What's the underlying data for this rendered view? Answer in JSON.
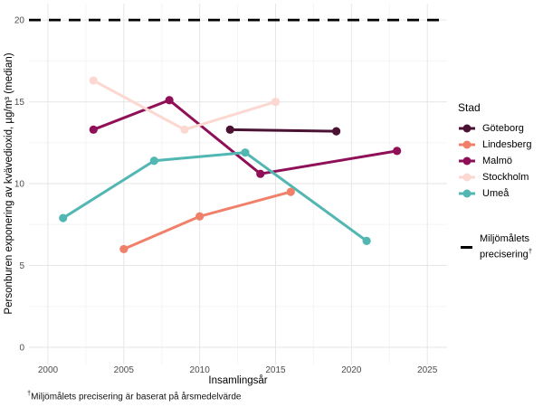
{
  "chart_data": {
    "type": "line",
    "title": "",
    "xlabel": "Insamlingsår",
    "ylabel": "Personburen exponering av kvävedioxid, µg/m³ (median)",
    "xlim": [
      1998.75,
      2026.3
    ],
    "ylim": [
      -1.05,
      21
    ],
    "x_ticks": [
      2000,
      2005,
      2010,
      2015,
      2020,
      2025
    ],
    "y_ticks": [
      0,
      5,
      10,
      15,
      20
    ],
    "x_minor_ticks": [
      2002.5,
      2007.5,
      2012.5,
      2017.5,
      2022.5
    ],
    "y_minor_ticks": [
      2.5,
      7.5,
      12.5,
      17.5
    ],
    "grid": "on",
    "legend_position": "right",
    "legend_title": "Stad",
    "series": [
      {
        "name": "Göteborg",
        "color": "#4b1234",
        "points": [
          [
            2012,
            13.3
          ],
          [
            2019,
            13.2
          ]
        ]
      },
      {
        "name": "Lindesberg",
        "color": "#f0806a",
        "points": [
          [
            2005,
            6.0
          ],
          [
            2010,
            8.0
          ],
          [
            2016,
            9.5
          ]
        ]
      },
      {
        "name": "Malmö",
        "color": "#8f1057",
        "points": [
          [
            2003,
            13.3
          ],
          [
            2008,
            15.1
          ],
          [
            2014,
            10.6
          ],
          [
            2023,
            12.0
          ]
        ]
      },
      {
        "name": "Stockholm",
        "color": "#fcd8d0",
        "points": [
          [
            2003,
            16.3
          ],
          [
            2009,
            13.3
          ],
          [
            2015,
            15.0
          ]
        ]
      },
      {
        "name": "Umeå",
        "color": "#52b7b3",
        "points": [
          [
            2001,
            7.9
          ],
          [
            2007,
            11.4
          ],
          [
            2013,
            11.9
          ],
          [
            2021,
            6.5
          ]
        ]
      }
    ],
    "reference_line": {
      "value": 20,
      "color": "#000000",
      "style": "dashed",
      "legend_label_line1": "Miljömålets",
      "legend_label_line2": "precisering",
      "legend_label_sup": "†"
    }
  },
  "footnote": {
    "dagger": "†",
    "text": "Miljömålets precisering är baserat på årsmedelvärde"
  }
}
